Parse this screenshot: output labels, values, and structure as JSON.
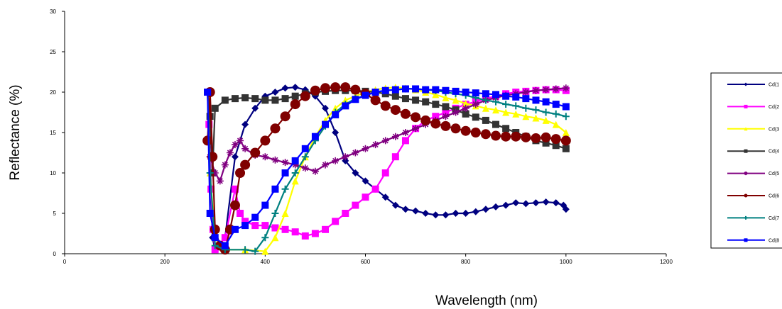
{
  "chart_data": {
    "type": "line",
    "title": "",
    "xlabel": "Wavelength (nm)",
    "ylabel": "Reflectance (%)",
    "xlim": [
      0,
      1200
    ],
    "ylim": [
      0,
      30
    ],
    "x_ticks": [
      "0",
      "200",
      "400",
      "600",
      "800",
      "1000",
      "1200"
    ],
    "y_ticks": [
      "0",
      "5",
      "10",
      "15",
      "20",
      "25",
      "30"
    ],
    "grid": false,
    "legend_position": "right",
    "series": [
      {
        "name": "Cd(1",
        "color": "#000080",
        "marker": "diamond",
        "points": [
          [
            285,
            20
          ],
          [
            290,
            12
          ],
          [
            295,
            2
          ],
          [
            300,
            0.5
          ],
          [
            320,
            2
          ],
          [
            340,
            12
          ],
          [
            360,
            16
          ],
          [
            380,
            18
          ],
          [
            400,
            19.5
          ],
          [
            420,
            20
          ],
          [
            440,
            20.5
          ],
          [
            460,
            20.6
          ],
          [
            480,
            20.3
          ],
          [
            500,
            19.5
          ],
          [
            520,
            18
          ],
          [
            540,
            15
          ],
          [
            560,
            11.5
          ],
          [
            580,
            10
          ],
          [
            600,
            9
          ],
          [
            620,
            8
          ],
          [
            640,
            7
          ],
          [
            660,
            6
          ],
          [
            680,
            5.5
          ],
          [
            700,
            5.3
          ],
          [
            720,
            5
          ],
          [
            740,
            4.8
          ],
          [
            760,
            4.8
          ],
          [
            780,
            5
          ],
          [
            800,
            5
          ],
          [
            820,
            5.2
          ],
          [
            840,
            5.5
          ],
          [
            860,
            5.8
          ],
          [
            880,
            6
          ],
          [
            900,
            6.3
          ],
          [
            920,
            6.2
          ],
          [
            940,
            6.3
          ],
          [
            960,
            6.4
          ],
          [
            980,
            6.3
          ],
          [
            995,
            6
          ],
          [
            1000,
            5.5
          ]
        ]
      },
      {
        "name": "Cd(2",
        "color": "#ff00ff",
        "marker": "square",
        "points": [
          [
            285,
            20
          ],
          [
            288,
            16
          ],
          [
            292,
            8
          ],
          [
            296,
            3
          ],
          [
            300,
            0.5
          ],
          [
            320,
            2
          ],
          [
            340,
            8
          ],
          [
            350,
            5
          ],
          [
            360,
            4
          ],
          [
            380,
            3.5
          ],
          [
            400,
            3.5
          ],
          [
            420,
            3.2
          ],
          [
            440,
            3
          ],
          [
            460,
            2.7
          ],
          [
            480,
            2.2
          ],
          [
            500,
            2.5
          ],
          [
            520,
            3
          ],
          [
            540,
            4
          ],
          [
            560,
            5
          ],
          [
            580,
            6
          ],
          [
            600,
            7
          ],
          [
            620,
            8
          ],
          [
            640,
            10
          ],
          [
            660,
            12
          ],
          [
            680,
            14
          ],
          [
            700,
            15.5
          ],
          [
            720,
            16.5
          ],
          [
            740,
            17
          ],
          [
            760,
            17.5
          ],
          [
            780,
            18
          ],
          [
            800,
            18.5
          ],
          [
            820,
            18.8
          ],
          [
            840,
            19.2
          ],
          [
            860,
            19.5
          ],
          [
            880,
            19.8
          ],
          [
            900,
            20
          ],
          [
            920,
            20.1
          ],
          [
            940,
            20.2
          ],
          [
            960,
            20.3
          ],
          [
            980,
            20.3
          ],
          [
            1000,
            20.2
          ]
        ]
      },
      {
        "name": "Cd(3",
        "color": "#ffff00",
        "marker": "triangle",
        "points": [
          [
            285,
            20
          ],
          [
            290,
            10
          ],
          [
            300,
            2
          ],
          [
            320,
            0.5
          ],
          [
            360,
            0.5
          ],
          [
            400,
            0.3
          ],
          [
            420,
            2
          ],
          [
            440,
            5
          ],
          [
            460,
            9
          ],
          [
            480,
            12
          ],
          [
            500,
            14.5
          ],
          [
            520,
            16.5
          ],
          [
            540,
            18
          ],
          [
            560,
            19
          ],
          [
            580,
            19.5
          ],
          [
            600,
            20
          ],
          [
            620,
            20.3
          ],
          [
            640,
            20.5
          ],
          [
            660,
            20.6
          ],
          [
            680,
            20.5
          ],
          [
            700,
            20.3
          ],
          [
            720,
            20
          ],
          [
            740,
            19.7
          ],
          [
            760,
            19.3
          ],
          [
            780,
            19
          ],
          [
            800,
            18.6
          ],
          [
            820,
            18.3
          ],
          [
            840,
            18
          ],
          [
            860,
            17.8
          ],
          [
            880,
            17.5
          ],
          [
            900,
            17.3
          ],
          [
            920,
            17
          ],
          [
            940,
            16.8
          ],
          [
            960,
            16.5
          ],
          [
            980,
            16
          ],
          [
            1000,
            15
          ]
        ]
      },
      {
        "name": "Cd(4",
        "color": "#333333",
        "marker": "square",
        "points": [
          [
            285,
            20
          ],
          [
            290,
            17
          ],
          [
            295,
            10
          ],
          [
            300,
            18
          ],
          [
            320,
            19
          ],
          [
            340,
            19.2
          ],
          [
            360,
            19.3
          ],
          [
            380,
            19.2
          ],
          [
            400,
            19
          ],
          [
            420,
            19
          ],
          [
            440,
            19.2
          ],
          [
            460,
            19.5
          ],
          [
            480,
            19.8
          ],
          [
            500,
            20
          ],
          [
            520,
            20.1
          ],
          [
            540,
            20.2
          ],
          [
            560,
            20.2
          ],
          [
            580,
            20.2
          ],
          [
            600,
            20.1
          ],
          [
            620,
            20
          ],
          [
            640,
            19.8
          ],
          [
            660,
            19.5
          ],
          [
            680,
            19.2
          ],
          [
            700,
            19
          ],
          [
            720,
            18.8
          ],
          [
            740,
            18.5
          ],
          [
            760,
            18.2
          ],
          [
            780,
            17.8
          ],
          [
            800,
            17.3
          ],
          [
            820,
            16.9
          ],
          [
            840,
            16.5
          ],
          [
            860,
            16
          ],
          [
            880,
            15.5
          ],
          [
            900,
            15
          ],
          [
            920,
            14.5
          ],
          [
            940,
            14
          ],
          [
            960,
            13.7
          ],
          [
            980,
            13.4
          ],
          [
            1000,
            13
          ]
        ]
      },
      {
        "name": "Cd(5",
        "color": "#800080",
        "marker": "star",
        "points": [
          [
            285,
            20
          ],
          [
            290,
            12
          ],
          [
            300,
            10
          ],
          [
            310,
            9
          ],
          [
            320,
            11
          ],
          [
            330,
            12.5
          ],
          [
            340,
            13.5
          ],
          [
            350,
            14
          ],
          [
            360,
            13
          ],
          [
            380,
            12.2
          ],
          [
            400,
            12
          ],
          [
            420,
            11.6
          ],
          [
            440,
            11.3
          ],
          [
            460,
            11
          ],
          [
            480,
            10.6
          ],
          [
            500,
            10.2
          ],
          [
            520,
            11
          ],
          [
            540,
            11.5
          ],
          [
            560,
            12
          ],
          [
            580,
            12.5
          ],
          [
            600,
            13
          ],
          [
            620,
            13.5
          ],
          [
            640,
            14
          ],
          [
            660,
            14.5
          ],
          [
            680,
            15
          ],
          [
            700,
            15.5
          ],
          [
            720,
            16
          ],
          [
            740,
            16.5
          ],
          [
            760,
            17
          ],
          [
            780,
            17.5
          ],
          [
            800,
            18
          ],
          [
            820,
            18.5
          ],
          [
            840,
            19
          ],
          [
            860,
            19.3
          ],
          [
            880,
            19.6
          ],
          [
            900,
            19.8
          ],
          [
            920,
            20
          ],
          [
            940,
            20.2
          ],
          [
            960,
            20.3
          ],
          [
            980,
            20.4
          ],
          [
            1000,
            20.5
          ]
        ]
      },
      {
        "name": "Cd(6",
        "color": "#800000",
        "marker": "circle",
        "points": [
          [
            285,
            14
          ],
          [
            290,
            20
          ],
          [
            295,
            12
          ],
          [
            300,
            3
          ],
          [
            310,
            1
          ],
          [
            320,
            0.5
          ],
          [
            330,
            3
          ],
          [
            340,
            6
          ],
          [
            350,
            10
          ],
          [
            360,
            11
          ],
          [
            380,
            12.5
          ],
          [
            400,
            14
          ],
          [
            420,
            15.5
          ],
          [
            440,
            17
          ],
          [
            460,
            18.5
          ],
          [
            480,
            19.5
          ],
          [
            500,
            20.2
          ],
          [
            520,
            20.5
          ],
          [
            540,
            20.6
          ],
          [
            560,
            20.6
          ],
          [
            580,
            20.3
          ],
          [
            600,
            19.8
          ],
          [
            620,
            19
          ],
          [
            640,
            18.3
          ],
          [
            660,
            17.8
          ],
          [
            680,
            17.3
          ],
          [
            700,
            16.9
          ],
          [
            720,
            16.5
          ],
          [
            740,
            16.1
          ],
          [
            760,
            15.8
          ],
          [
            780,
            15.5
          ],
          [
            800,
            15.2
          ],
          [
            820,
            15
          ],
          [
            840,
            14.8
          ],
          [
            860,
            14.6
          ],
          [
            880,
            14.5
          ],
          [
            900,
            14.5
          ],
          [
            920,
            14.4
          ],
          [
            940,
            14.3
          ],
          [
            960,
            14.4
          ],
          [
            980,
            14.2
          ],
          [
            1000,
            14
          ]
        ]
      },
      {
        "name": "Cd(7",
        "color": "#008080",
        "marker": "plus",
        "points": [
          [
            285,
            20
          ],
          [
            290,
            10
          ],
          [
            300,
            1
          ],
          [
            320,
            0.5
          ],
          [
            360,
            0.5
          ],
          [
            380,
            0.3
          ],
          [
            400,
            2
          ],
          [
            420,
            5
          ],
          [
            440,
            8
          ],
          [
            460,
            10
          ],
          [
            480,
            12
          ],
          [
            500,
            14
          ],
          [
            520,
            15.8
          ],
          [
            540,
            17.5
          ],
          [
            560,
            18.5
          ],
          [
            580,
            19.2
          ],
          [
            600,
            19.6
          ],
          [
            620,
            20
          ],
          [
            640,
            20.2
          ],
          [
            660,
            20.3
          ],
          [
            680,
            20.4
          ],
          [
            700,
            20.4
          ],
          [
            720,
            20.3
          ],
          [
            740,
            20.2
          ],
          [
            760,
            20
          ],
          [
            780,
            19.8
          ],
          [
            800,
            19.6
          ],
          [
            820,
            19.3
          ],
          [
            840,
            19
          ],
          [
            860,
            18.8
          ],
          [
            880,
            18.5
          ],
          [
            900,
            18.3
          ],
          [
            920,
            18
          ],
          [
            940,
            17.8
          ],
          [
            960,
            17.5
          ],
          [
            980,
            17.3
          ],
          [
            1000,
            17
          ]
        ]
      },
      {
        "name": "Cd(8",
        "color": "#0000ff",
        "marker": "square",
        "points": [
          [
            285,
            20
          ],
          [
            290,
            5
          ],
          [
            300,
            2
          ],
          [
            320,
            1
          ],
          [
            340,
            3
          ],
          [
            360,
            3.5
          ],
          [
            380,
            4.5
          ],
          [
            400,
            6
          ],
          [
            420,
            8
          ],
          [
            440,
            10
          ],
          [
            460,
            11.5
          ],
          [
            480,
            13
          ],
          [
            500,
            14.5
          ],
          [
            520,
            16
          ],
          [
            540,
            17.2
          ],
          [
            560,
            18.3
          ],
          [
            580,
            19.1
          ],
          [
            600,
            19.6
          ],
          [
            620,
            20
          ],
          [
            640,
            20.2
          ],
          [
            660,
            20.3
          ],
          [
            680,
            20.4
          ],
          [
            700,
            20.4
          ],
          [
            720,
            20.3
          ],
          [
            740,
            20.3
          ],
          [
            760,
            20.2
          ],
          [
            780,
            20.1
          ],
          [
            800,
            20
          ],
          [
            820,
            19.9
          ],
          [
            840,
            19.8
          ],
          [
            860,
            19.7
          ],
          [
            880,
            19.5
          ],
          [
            900,
            19.4
          ],
          [
            920,
            19.2
          ],
          [
            940,
            19
          ],
          [
            960,
            18.8
          ],
          [
            980,
            18.5
          ],
          [
            1000,
            18.2
          ]
        ]
      }
    ]
  }
}
